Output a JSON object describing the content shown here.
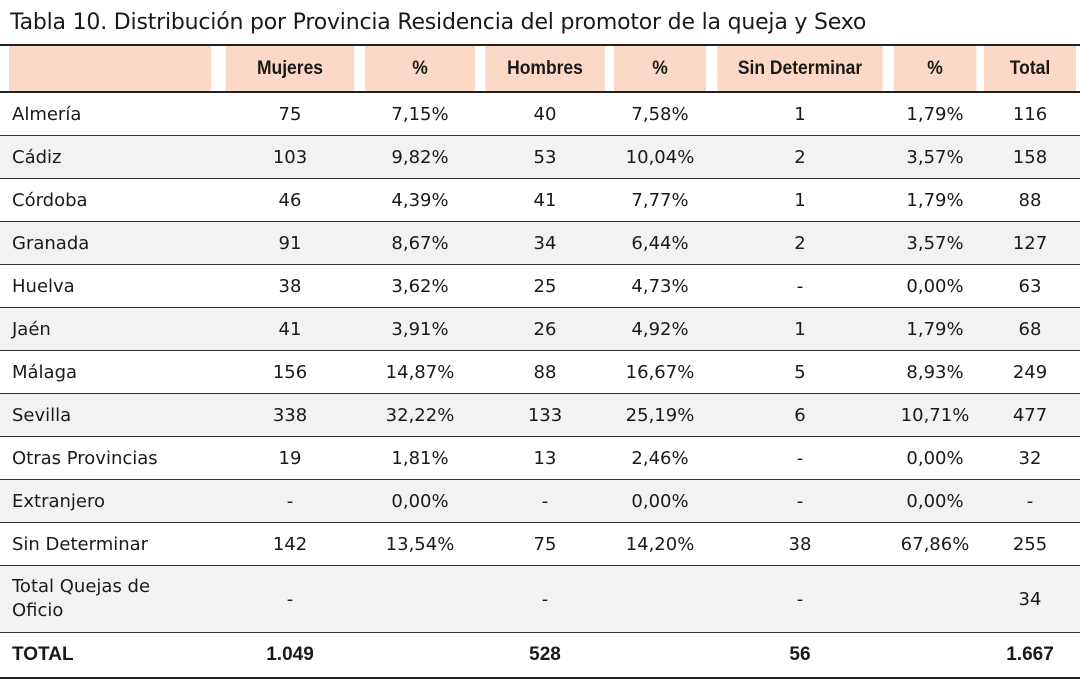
{
  "title": "Tabla 10. Distribución por Provincia Residencia del promotor de la queja y Sexo",
  "headers": [
    "",
    "Mujeres",
    "%",
    "Hombres",
    "%",
    "Sin Determinar",
    "%",
    "Total"
  ],
  "rows": [
    [
      "Almería",
      "75",
      "7,15%",
      "40",
      "7,58%",
      "1",
      "1,79%",
      "116"
    ],
    [
      "Cádiz",
      "103",
      "9,82%",
      "53",
      "10,04%",
      "2",
      "3,57%",
      "158"
    ],
    [
      "Córdoba",
      "46",
      "4,39%",
      "41",
      "7,77%",
      "1",
      "1,79%",
      "88"
    ],
    [
      "Granada",
      "91",
      "8,67%",
      "34",
      "6,44%",
      "2",
      "3,57%",
      "127"
    ],
    [
      "Huelva",
      "38",
      "3,62%",
      "25",
      "4,73%",
      "-",
      "0,00%",
      "63"
    ],
    [
      "Jaén",
      "41",
      "3,91%",
      "26",
      "4,92%",
      "1",
      "1,79%",
      "68"
    ],
    [
      "Málaga",
      "156",
      "14,87%",
      "88",
      "16,67%",
      "5",
      "8,93%",
      "249"
    ],
    [
      "Sevilla",
      "338",
      "32,22%",
      "133",
      "25,19%",
      "6",
      "10,71%",
      "477"
    ],
    [
      "Otras Provincias",
      "19",
      "1,81%",
      "13",
      "2,46%",
      "-",
      "0,00%",
      "32"
    ],
    [
      "Extranjero",
      "-",
      "0,00%",
      "-",
      "0,00%",
      "-",
      "0,00%",
      "-"
    ],
    [
      "Sin Determinar",
      "142",
      "13,54%",
      "75",
      "14,20%",
      "38",
      "67,86%",
      "255"
    ],
    [
      "Total Quejas de Oficio",
      "-",
      "",
      "-",
      "",
      "-",
      "",
      "34"
    ]
  ],
  "total": [
    "TOTAL",
    "1.049",
    "",
    "528",
    "",
    "56",
    "",
    "1.667"
  ]
}
